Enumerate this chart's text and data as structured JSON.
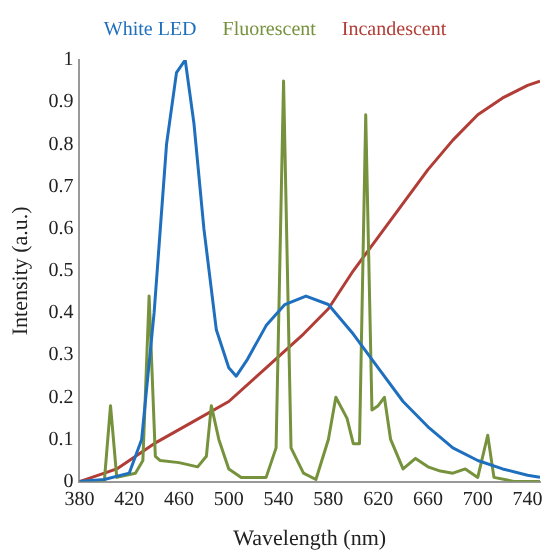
{
  "chart_data": {
    "type": "line",
    "xlabel": "Wavelength (nm)",
    "ylabel": "Intensity (a.u.)",
    "xlim": [
      380,
      750
    ],
    "xticks": [
      380,
      420,
      460,
      500,
      540,
      580,
      620,
      660,
      700,
      740
    ],
    "ylim": [
      0,
      1
    ],
    "yticks": [
      0,
      0.1,
      0.2,
      0.3,
      0.4,
      0.5,
      0.6,
      0.7,
      0.8,
      0.9,
      1
    ],
    "grid": false,
    "legend": "top",
    "marker": "none",
    "line_style": "solid",
    "series": [
      {
        "name": "White LED",
        "color": "#1f6fbf",
        "x": [
          380,
          400,
          420,
          430,
          440,
          450,
          458,
          465,
          472,
          480,
          490,
          500,
          506,
          515,
          530,
          545,
          562,
          580,
          600,
          620,
          640,
          660,
          680,
          700,
          720,
          740,
          750
        ],
        "values": [
          0,
          0.005,
          0.02,
          0.1,
          0.4,
          0.8,
          0.97,
          1.0,
          0.85,
          0.6,
          0.36,
          0.27,
          0.25,
          0.29,
          0.37,
          0.42,
          0.44,
          0.42,
          0.35,
          0.27,
          0.19,
          0.13,
          0.08,
          0.05,
          0.03,
          0.015,
          0.01
        ]
      },
      {
        "name": "Fluorescent",
        "color": "#76923c",
        "x": [
          380,
          400,
          405,
          410,
          425,
          431,
          436,
          441,
          445,
          460,
          475,
          482,
          486,
          492,
          500,
          510,
          530,
          538,
          544,
          550,
          560,
          570,
          580,
          586,
          595,
          600,
          605,
          610,
          615,
          620,
          625,
          630,
          640,
          650,
          660,
          670,
          680,
          690,
          700,
          708,
          713,
          730,
          750
        ],
        "values": [
          0,
          0.0,
          0.18,
          0.01,
          0.02,
          0.05,
          0.44,
          0.06,
          0.05,
          0.045,
          0.035,
          0.06,
          0.18,
          0.1,
          0.03,
          0.01,
          0.01,
          0.08,
          0.95,
          0.08,
          0.02,
          0.005,
          0.1,
          0.2,
          0.15,
          0.09,
          0.09,
          0.87,
          0.17,
          0.18,
          0.2,
          0.1,
          0.03,
          0.055,
          0.035,
          0.025,
          0.02,
          0.03,
          0.01,
          0.11,
          0.01,
          0.0,
          0.0
        ]
      },
      {
        "name": "Incandescent",
        "color": "#b23c36",
        "x": [
          380,
          410,
          440,
          470,
          500,
          530,
          560,
          580,
          600,
          620,
          640,
          660,
          680,
          700,
          720,
          740,
          750
        ],
        "values": [
          0,
          0.03,
          0.09,
          0.14,
          0.19,
          0.27,
          0.35,
          0.41,
          0.5,
          0.58,
          0.66,
          0.74,
          0.81,
          0.87,
          0.91,
          0.94,
          0.95
        ]
      }
    ]
  }
}
